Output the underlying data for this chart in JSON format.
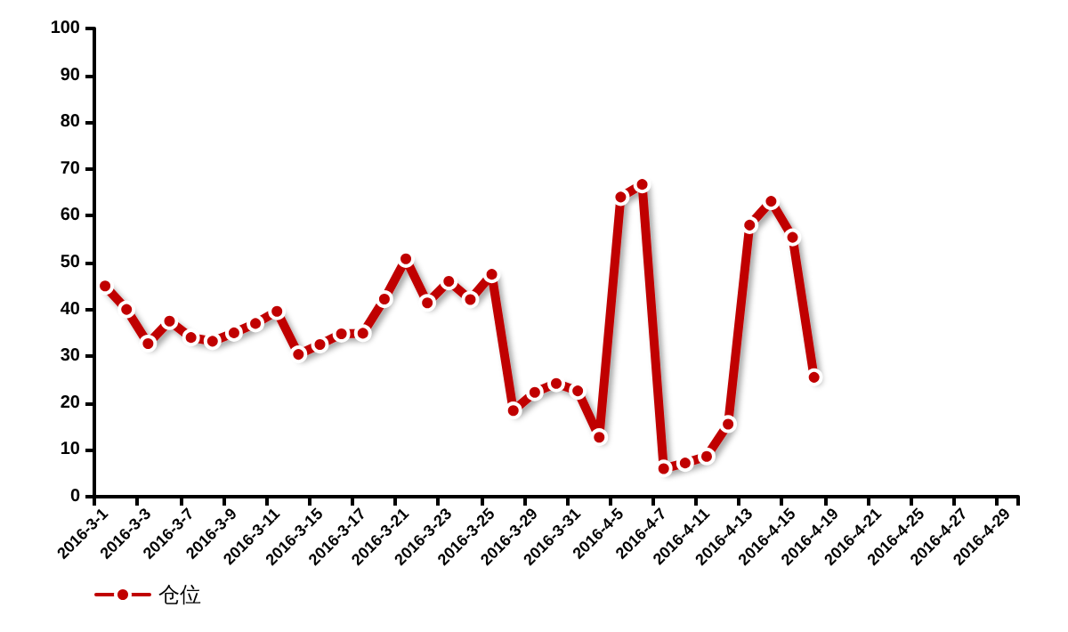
{
  "chart_data": {
    "type": "line",
    "categories": [
      "2016-3-1",
      null,
      "2016-3-3",
      null,
      "2016-3-7",
      null,
      "2016-3-9",
      null,
      "2016-3-11",
      null,
      "2016-3-15",
      null,
      "2016-3-17",
      null,
      "2016-3-21",
      null,
      "2016-3-23",
      null,
      "2016-3-25",
      null,
      "2016-3-29",
      null,
      "2016-3-31",
      null,
      "2016-4-5",
      null,
      "2016-4-7",
      null,
      "2016-4-11",
      null,
      "2016-4-13",
      null,
      "2016-4-15",
      null,
      "2016-4-19",
      null,
      "2016-4-21",
      null,
      "2016-4-25",
      null,
      "2016-4-27",
      null,
      "2016-4-29"
    ],
    "series": [
      {
        "name": "仓位",
        "color": "#c00000",
        "values": [
          45,
          40,
          32.7,
          37.5,
          34,
          33.2,
          35,
          37,
          39.6,
          30.4,
          32.5,
          34.8,
          34.9,
          42.2,
          50.8,
          41.4,
          46,
          42.1,
          47.5,
          18.4,
          22.3,
          24.2,
          22.6,
          12.7,
          64,
          66.7,
          6,
          7.2,
          8.6,
          15.5,
          58,
          63.1,
          55.4,
          25.5,
          null,
          null,
          null,
          null,
          null,
          null,
          null,
          null,
          null
        ]
      }
    ],
    "ylim": [
      0,
      100
    ],
    "yticks": [
      0,
      10,
      20,
      30,
      40,
      50,
      60,
      70,
      80,
      90,
      100
    ],
    "grid": false,
    "legend": "bottom left",
    "marker": "circle",
    "line_style": "solid"
  }
}
